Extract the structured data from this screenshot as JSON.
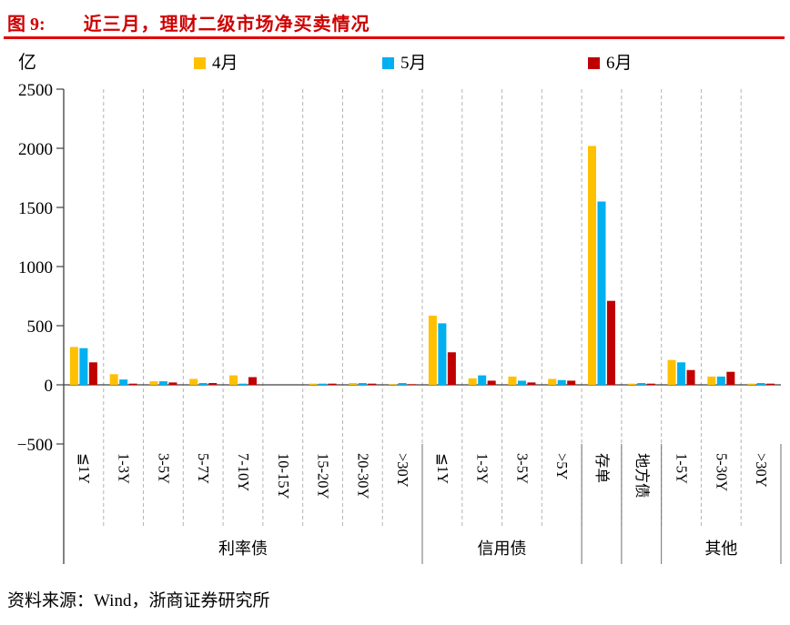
{
  "header": {
    "figure_label": "图 9:",
    "title": "近三月，理财二级市场净买卖情况"
  },
  "footer": {
    "source": "资料来源：Wind，浙商证券研究所"
  },
  "chart_data": {
    "type": "bar",
    "title": "近三月，理财二级市场净买卖情况",
    "unit_label": "亿",
    "ylabel": "亿",
    "xlabel": "",
    "ylim": [
      -500,
      2500
    ],
    "yticks": [
      2500,
      2000,
      1500,
      1000,
      500,
      0,
      -500
    ],
    "grid": "dashed-vertical-category-separators",
    "legend_position": "top",
    "categories": [
      "≦1Y",
      "1-3Y",
      "3-5Y",
      "5-7Y",
      "7-10Y",
      "10-15Y",
      "15-20Y",
      "20-30Y",
      ">30Y",
      "≦1Y",
      "1-3Y",
      "3-5Y",
      ">5Y",
      "存单",
      "地方债",
      "1-5Y",
      "5-30Y",
      ">30Y"
    ],
    "groups": [
      {
        "label": "利率债",
        "span": 9
      },
      {
        "label": "信用债",
        "span": 4
      },
      {
        "label": "",
        "span": 1
      },
      {
        "label": "",
        "span": 1
      },
      {
        "label": "其他",
        "span": 3
      }
    ],
    "series": [
      {
        "name": "4月",
        "color": "#FFC000",
        "values": [
          320,
          90,
          30,
          50,
          80,
          0,
          10,
          15,
          5,
          585,
          55,
          70,
          50,
          2020,
          10,
          210,
          70,
          10
        ]
      },
      {
        "name": "5月",
        "color": "#00B0F0",
        "values": [
          310,
          45,
          30,
          15,
          10,
          0,
          10,
          15,
          15,
          520,
          80,
          35,
          40,
          1550,
          15,
          190,
          70,
          15
        ]
      },
      {
        "name": "6月",
        "color": "#C00000",
        "values": [
          190,
          10,
          20,
          15,
          65,
          0,
          10,
          10,
          5,
          275,
          35,
          20,
          35,
          710,
          10,
          125,
          110,
          10
        ]
      }
    ]
  }
}
